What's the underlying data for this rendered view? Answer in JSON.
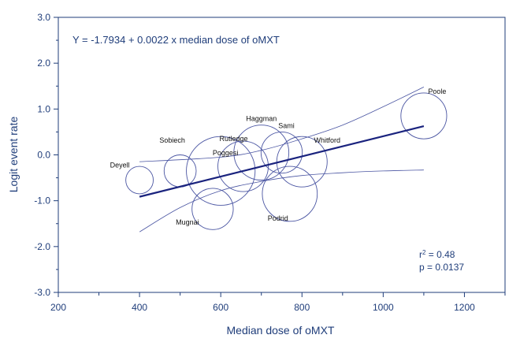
{
  "chart_data": {
    "type": "scatter",
    "title": "",
    "xlabel": "Median dose of oMXT",
    "ylabel": "Logit event rate",
    "xlim": [
      200,
      1300
    ],
    "ylim": [
      -3.0,
      3.0
    ],
    "xticks": [
      200,
      400,
      600,
      800,
      1000,
      1200
    ],
    "yticks": [
      -3.0,
      -2.0,
      -1.0,
      0.0,
      1.0,
      2.0,
      3.0
    ],
    "xtick_labels": [
      "200",
      "400",
      "600",
      "800",
      "1000",
      "1200"
    ],
    "ytick_labels": [
      "-3.0",
      "-2.0",
      "-1.0",
      "0.0",
      "1.0",
      "2.0",
      "3.0"
    ],
    "grid": false,
    "points": [
      {
        "label": "Deyell",
        "x": 400,
        "y": -0.55,
        "weight": 0.3
      },
      {
        "label": "Sobiech",
        "x": 500,
        "y": -0.35,
        "weight": 0.35
      },
      {
        "label": "Poggesi",
        "x": 600,
        "y": -0.35,
        "weight": 0.75
      },
      {
        "label": "Rutledge",
        "x": 655,
        "y": -0.25,
        "weight": 0.55
      },
      {
        "label": "Haggman",
        "x": 700,
        "y": 0.05,
        "weight": 0.6
      },
      {
        "label": "Sami",
        "x": 750,
        "y": 0.05,
        "weight": 0.45
      },
      {
        "label": "Whitford",
        "x": 800,
        "y": -0.15,
        "weight": 0.55
      },
      {
        "label": "Mugnai",
        "x": 580,
        "y": -1.18,
        "weight": 0.45
      },
      {
        "label": "Podrid",
        "x": 770,
        "y": -0.85,
        "weight": 0.6
      },
      {
        "label": "Poole",
        "x": 1100,
        "y": 0.85,
        "weight": 0.5
      }
    ],
    "regression": {
      "intercept": -1.7934,
      "slope": 0.0022,
      "x_range": [
        400,
        1100
      ],
      "equation": "Y = -1.7934 + 0.0022 x median dose of oMXT"
    },
    "confidence_band": {
      "upper": [
        [
          400,
          -0.15
        ],
        [
          600,
          -0.05
        ],
        [
          700,
          0.1
        ],
        [
          800,
          0.35
        ],
        [
          900,
          0.65
        ],
        [
          1000,
          1.05
        ],
        [
          1100,
          1.48
        ]
      ],
      "lower": [
        [
          400,
          -1.68
        ],
        [
          500,
          -1.15
        ],
        [
          600,
          -0.78
        ],
        [
          700,
          -0.58
        ],
        [
          800,
          -0.45
        ],
        [
          900,
          -0.39
        ],
        [
          1000,
          -0.35
        ],
        [
          1100,
          -0.33
        ]
      ]
    },
    "stats": {
      "r2_prefix": "r",
      "r2_sup": "2",
      "r2_value": " = 0.48",
      "p": "p = 0.0137"
    },
    "colors": {
      "axis": "#1f3d7a",
      "regression": "#1a237e",
      "bubble": "#4a55a2",
      "band": "#4a55a2"
    }
  }
}
